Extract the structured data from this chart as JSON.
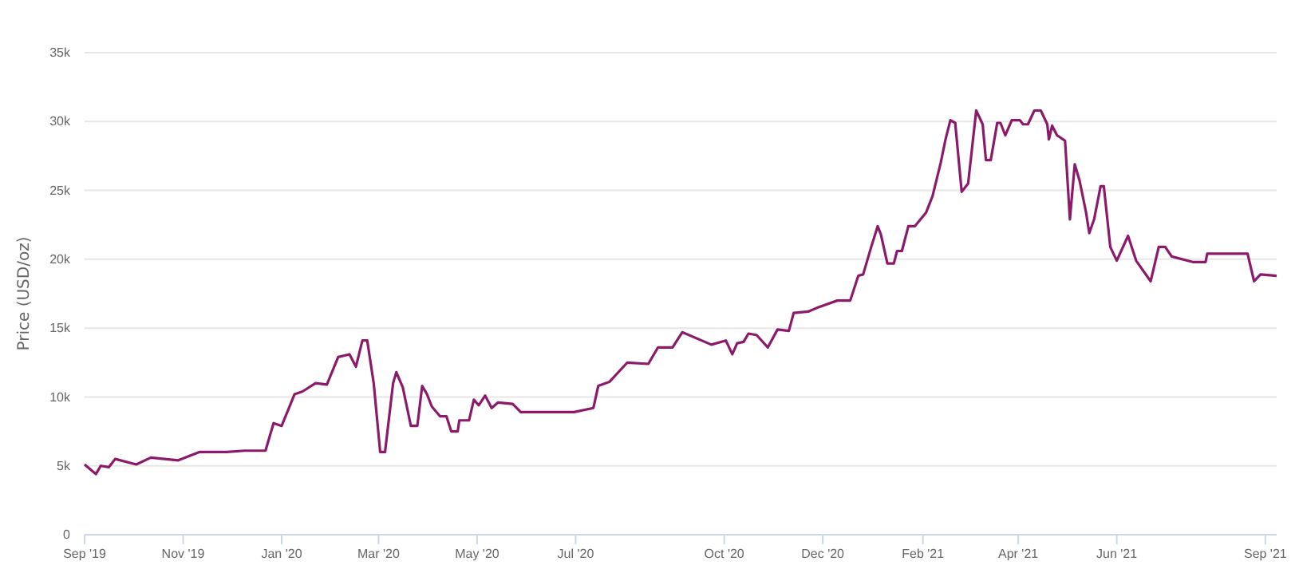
{
  "chart_data": {
    "type": "line",
    "ylabel": "Price (USD/oz)",
    "grid": "y",
    "xlim": [
      "2019-09-01",
      "2021-09-08"
    ],
    "xticks": [
      {
        "value": "2019-09-01",
        "label": "Sep '19"
      },
      {
        "value": "2019-11-01",
        "label": "Nov '19"
      },
      {
        "value": "2020-01-01",
        "label": "Jan '20"
      },
      {
        "value": "2020-03-01",
        "label": "Mar '20"
      },
      {
        "value": "2020-05-01",
        "label": "May '20"
      },
      {
        "value": "2020-07-01",
        "label": "Jul '20"
      },
      {
        "value": "2020-10-01",
        "label": "Oct '20"
      },
      {
        "value": "2020-12-01",
        "label": "Dec '20"
      },
      {
        "value": "2021-02-01",
        "label": "Feb '21"
      },
      {
        "value": "2021-04-01",
        "label": "Apr '21"
      },
      {
        "value": "2021-06-01",
        "label": "Jun '21"
      },
      {
        "value": "2021-09-01",
        "label": "Sep '21"
      }
    ],
    "ylim": [
      0,
      35000
    ],
    "yticks": [
      0,
      {
        "value": 5000,
        "label": "5k"
      },
      {
        "value": 10000,
        "label": "10k"
      },
      {
        "value": 15000,
        "label": "15k"
      },
      {
        "value": 20000,
        "label": "20k"
      },
      {
        "value": 25000,
        "label": "25k"
      },
      {
        "value": 30000,
        "label": "30k"
      },
      {
        "value": 35000,
        "label": "35k"
      }
    ],
    "x": [
      "2019-09-01",
      "2019-09-08",
      "2019-09-11",
      "2019-09-16",
      "2019-09-20",
      "2019-10-03",
      "2019-10-12",
      "2019-10-29",
      "2019-11-11",
      "2019-11-28",
      "2019-12-09",
      "2019-12-22",
      "2019-12-27",
      "2020-01-01",
      "2020-01-09",
      "2020-01-14",
      "2020-01-22",
      "2020-01-29",
      "2020-02-05",
      "2020-02-12",
      "2020-02-16",
      "2020-02-20",
      "2020-02-23",
      "2020-02-27",
      "2020-03-02",
      "2020-03-05",
      "2020-03-10",
      "2020-03-12",
      "2020-03-16",
      "2020-03-21",
      "2020-03-25",
      "2020-03-28",
      "2020-03-31",
      "2020-04-03",
      "2020-04-08",
      "2020-04-12",
      "2020-04-15",
      "2020-04-19",
      "2020-04-20",
      "2020-04-26",
      "2020-04-29",
      "2020-05-02",
      "2020-05-06",
      "2020-05-10",
      "2020-05-14",
      "2020-05-23",
      "2020-05-28",
      "2020-06-30",
      "2020-07-12",
      "2020-07-15",
      "2020-07-22",
      "2020-08-02",
      "2020-08-15",
      "2020-08-21",
      "2020-08-30",
      "2020-09-05",
      "2020-09-19",
      "2020-09-23",
      "2020-10-02",
      "2020-10-06",
      "2020-10-09",
      "2020-10-13",
      "2020-10-16",
      "2020-10-21",
      "2020-10-28",
      "2020-11-03",
      "2020-11-10",
      "2020-11-13",
      "2020-11-22",
      "2020-11-28",
      "2020-12-10",
      "2020-12-18",
      "2020-12-23",
      "2020-12-26",
      "2020-12-31",
      "2021-01-04",
      "2021-01-06",
      "2021-01-10",
      "2021-01-14",
      "2021-01-16",
      "2021-01-19",
      "2021-01-23",
      "2021-01-27",
      "2021-02-03",
      "2021-02-07",
      "2021-02-12",
      "2021-02-15",
      "2021-02-18",
      "2021-02-21",
      "2021-02-25",
      "2021-03-01",
      "2021-03-06",
      "2021-03-10",
      "2021-03-12",
      "2021-03-15",
      "2021-03-19",
      "2021-03-21",
      "2021-03-24",
      "2021-03-28",
      "2021-04-02",
      "2021-04-04",
      "2021-04-07",
      "2021-04-11",
      "2021-04-15",
      "2021-04-19",
      "2021-04-20",
      "2021-04-22",
      "2021-04-25",
      "2021-04-30",
      "2021-05-03",
      "2021-05-06",
      "2021-05-09",
      "2021-05-13",
      "2021-05-15",
      "2021-05-18",
      "2021-05-22",
      "2021-05-24",
      "2021-05-28",
      "2021-06-01",
      "2021-06-08",
      "2021-06-13",
      "2021-06-22",
      "2021-06-27",
      "2021-07-01",
      "2021-07-05",
      "2021-07-18",
      "2021-07-26",
      "2021-07-27",
      "2021-08-21",
      "2021-08-25",
      "2021-08-29",
      "2021-09-08"
    ],
    "series": [
      {
        "color": "#8b1a6b",
        "values": [
          5100,
          4400,
          5000,
          4900,
          5500,
          5100,
          5600,
          5400,
          6000,
          6000,
          6100,
          6100,
          8100,
          7900,
          10200,
          10400,
          11000,
          10900,
          12900,
          13100,
          12200,
          14100,
          14100,
          11000,
          6000,
          6000,
          11000,
          11800,
          10700,
          7900,
          7900,
          10800,
          10200,
          9300,
          8600,
          8600,
          7500,
          7500,
          8300,
          8300,
          9800,
          9400,
          10100,
          9200,
          9600,
          9500,
          8900,
          8900,
          9200,
          10800,
          11100,
          12500,
          12400,
          13600,
          13600,
          14700,
          14000,
          13800,
          14100,
          13100,
          13900,
          14000,
          14600,
          14500,
          13600,
          14900,
          14800,
          16100,
          16200,
          16500,
          17000,
          17000,
          18800,
          18900,
          20900,
          22400,
          21800,
          19700,
          19700,
          20600,
          20600,
          22400,
          22400,
          23400,
          24600,
          27000,
          28700,
          30100,
          29900,
          24900,
          25500,
          30800,
          29800,
          27200,
          27200,
          29900,
          29900,
          29000,
          30100,
          30100,
          29800,
          29800,
          30800,
          30800,
          29800,
          28700,
          29700,
          29000,
          28600,
          22900,
          26900,
          25700,
          23400,
          21900,
          22900,
          25300,
          25300,
          20900,
          19900,
          21700,
          19900,
          18400,
          20900,
          20900,
          20200,
          19800,
          19800,
          20400,
          20400,
          18400,
          18900,
          18800
        ]
      }
    ]
  }
}
